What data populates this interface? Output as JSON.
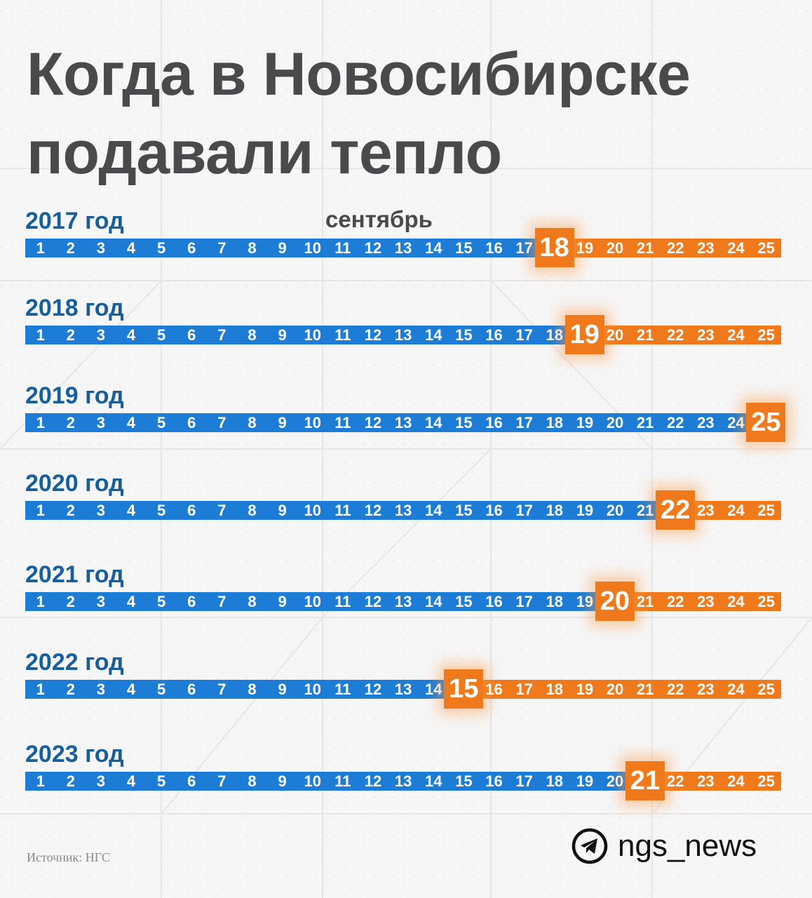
{
  "title": {
    "line1": "Когда в Новосибирске",
    "line2": "подавали тепло"
  },
  "month_label": "сентябрь",
  "days": [
    "1",
    "2",
    "3",
    "4",
    "5",
    "6",
    "7",
    "8",
    "9",
    "10",
    "11",
    "12",
    "13",
    "14",
    "15",
    "16",
    "17",
    "18",
    "19",
    "20",
    "21",
    "22",
    "23",
    "24",
    "25"
  ],
  "years": [
    {
      "label": "2017 год",
      "heat_start_day": 18
    },
    {
      "label": "2018 год",
      "heat_start_day": 19
    },
    {
      "label": "2019 год",
      "heat_start_day": 25
    },
    {
      "label": "2020 год",
      "heat_start_day": 22
    },
    {
      "label": "2021 год",
      "heat_start_day": 20
    },
    {
      "label": "2022 год",
      "heat_start_day": 15
    },
    {
      "label": "2023 год",
      "heat_start_day": 21
    }
  ],
  "colors": {
    "before_heating": "#1c7cd6",
    "after_heating": "#f07a1b",
    "year_label": "#175f9c",
    "title": "#4a4a4c"
  },
  "footer": {
    "source": "Источник: НГС",
    "brand_name": "ngs_news",
    "brand_icon": "telegram-icon"
  }
}
